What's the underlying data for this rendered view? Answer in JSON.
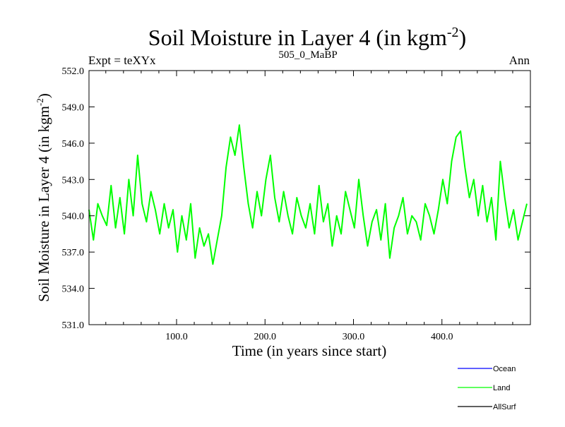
{
  "chart_data": {
    "type": "line",
    "title": "Soil Moisture in Layer 4 (in kgm",
    "title_sup": "-2",
    "title_close": ")",
    "header_left": "Expt = teXYx",
    "header_center": "505_0_MaBP",
    "header_right": "Ann",
    "xlabel": "Time (in years since start)",
    "ylabel": "Soil Moisture in Layer 4 (in kgm",
    "ylabel_sup": "-2",
    "ylabel_close": ")",
    "xlim": [
      1,
      500
    ],
    "ylim": [
      531.0,
      552.0
    ],
    "x_ticks": [
      "100.0",
      "200.0",
      "300.0",
      "400.0"
    ],
    "x_tick_values": [
      100,
      200,
      300,
      400
    ],
    "y_ticks": [
      "531.0",
      "534.0",
      "537.0",
      "540.0",
      "543.0",
      "546.0",
      "549.0",
      "552.0"
    ],
    "y_tick_values": [
      531,
      534,
      537,
      540,
      543,
      546,
      549,
      552
    ],
    "legend": [
      {
        "name": "Ocean",
        "color": "#0000ff"
      },
      {
        "name": "Land",
        "color": "#00ff00"
      },
      {
        "name": "AllSurf",
        "color": "#000000"
      }
    ],
    "series": [
      {
        "name": "Land",
        "color": "#00ff00",
        "x_start": 1,
        "x_step": 5,
        "values": [
          540.5,
          538.0,
          541.0,
          540.0,
          539.2,
          542.5,
          539.0,
          541.5,
          538.5,
          543.0,
          540.0,
          545.0,
          541.0,
          539.5,
          542.0,
          540.5,
          538.5,
          541.0,
          539.0,
          540.5,
          537.0,
          540.0,
          538.0,
          541.0,
          536.5,
          539.0,
          537.5,
          538.5,
          536.0,
          538.0,
          540.0,
          544.0,
          546.5,
          545.0,
          547.5,
          544.0,
          541.0,
          539.0,
          542.0,
          540.0,
          543.0,
          545.0,
          541.5,
          539.5,
          542.0,
          540.0,
          538.5,
          541.5,
          540.0,
          539.0,
          541.0,
          538.5,
          542.5,
          539.5,
          541.0,
          537.5,
          540.0,
          538.5,
          542.0,
          540.5,
          539.0,
          543.0,
          540.0,
          537.5,
          539.5,
          540.5,
          538.0,
          541.0,
          536.5,
          539.0,
          540.0,
          541.5,
          538.5,
          540.0,
          539.5,
          538.0,
          541.0,
          540.0,
          538.5,
          540.5,
          543.0,
          541.0,
          544.5,
          546.5,
          547.0,
          544.0,
          541.5,
          543.0,
          540.0,
          542.5,
          539.5,
          541.5,
          538.0,
          544.5,
          541.5,
          539.0,
          540.5,
          538.0,
          539.5,
          541.0
        ]
      }
    ]
  }
}
